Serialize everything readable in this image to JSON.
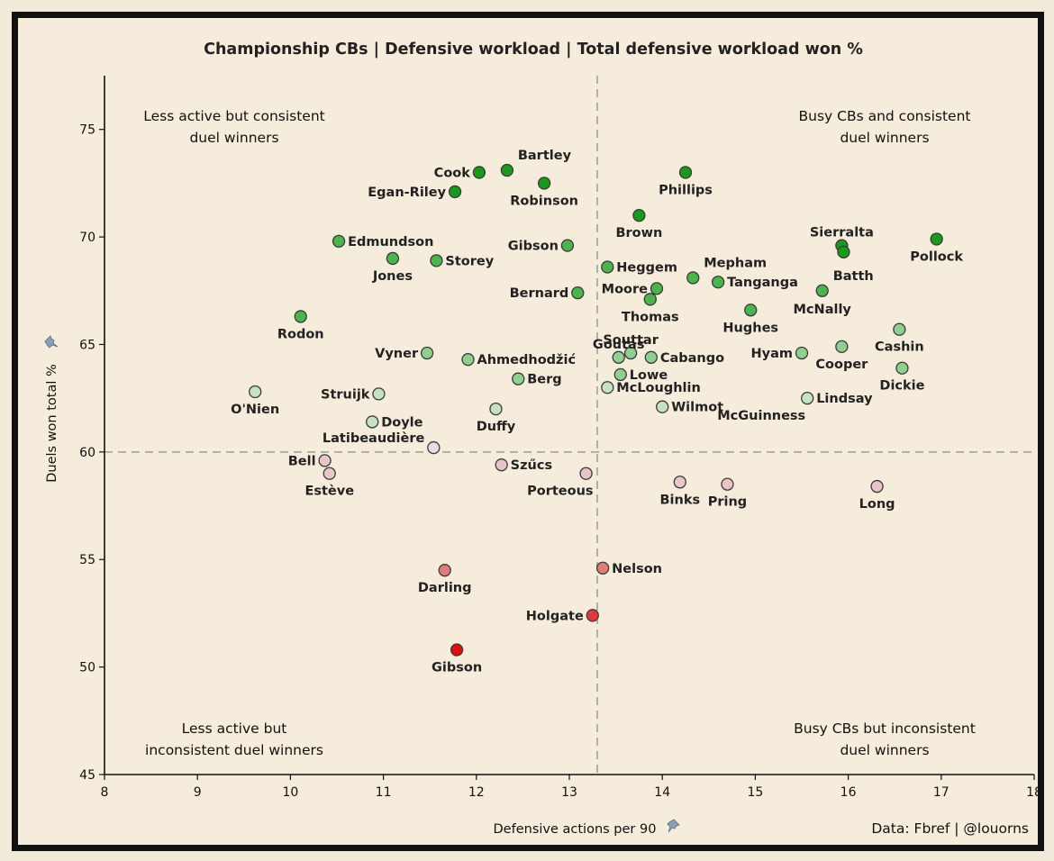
{
  "title": "Championship CBs | Defensive workload | Total defensive workload won %",
  "xlabel": "Defensive actions per 90",
  "ylabel": "Duels won total %",
  "credit": "Data: Fbref  |  @louorns",
  "quadrants": {
    "top_left": [
      "Less active but consistent",
      "duel winners"
    ],
    "top_right": [
      "Busy CBs and consistent",
      "duel winners"
    ],
    "bottom_left": [
      "Less active but",
      "inconsistent duel winners"
    ],
    "bottom_right": [
      "Busy CBs but inconsistent",
      "duel winners"
    ]
  },
  "colors": {
    "dark_green": "#1a9a1a",
    "mid_green": "#4ab54a",
    "light_green": "#8fcf8f",
    "pale_green": "#c5e3c2",
    "neutral": "#e3dee0",
    "pale_pink": "#e9c4c8",
    "light_red": "#e27c7c",
    "red": "#e23a3a",
    "dark_red": "#dd1010"
  },
  "chart_data": {
    "type": "scatter",
    "title": "Championship CBs | Defensive workload | Total defensive workload won %",
    "xlabel": "Defensive actions per 90",
    "ylabel": "Duels won total %",
    "xlim": [
      8,
      18
    ],
    "ylim": [
      45,
      77.5
    ],
    "xticks": [
      8,
      9,
      10,
      11,
      12,
      13,
      14,
      15,
      16,
      17,
      18
    ],
    "yticks": [
      45,
      50,
      55,
      60,
      65,
      70,
      75
    ],
    "reference_lines": {
      "x": 13.3,
      "y": 60
    },
    "points": [
      {
        "name": "Cook",
        "x": 12.03,
        "y": 73.0,
        "color": "dark_green",
        "pos": "left"
      },
      {
        "name": "Bartley",
        "x": 12.33,
        "y": 73.1,
        "color": "dark_green",
        "pos": "upright"
      },
      {
        "name": "Egan-Riley",
        "x": 11.77,
        "y": 72.1,
        "color": "dark_green",
        "pos": "left"
      },
      {
        "name": "Robinson",
        "x": 12.73,
        "y": 72.5,
        "color": "dark_green",
        "pos": "below"
      },
      {
        "name": "Phillips",
        "x": 14.25,
        "y": 73.0,
        "color": "dark_green",
        "pos": "below"
      },
      {
        "name": "Brown",
        "x": 13.75,
        "y": 71.0,
        "color": "dark_green",
        "pos": "below"
      },
      {
        "name": "Pollock",
        "x": 16.95,
        "y": 69.9,
        "color": "dark_green",
        "pos": "below"
      },
      {
        "name": "Sierralta",
        "x": 15.93,
        "y": 69.6,
        "color": "dark_green",
        "pos": "above"
      },
      {
        "name": "",
        "x": 15.95,
        "y": 69.3,
        "color": "dark_green",
        "pos": "none"
      },
      {
        "name": "Edmundson",
        "x": 10.52,
        "y": 69.8,
        "color": "mid_green",
        "pos": "right"
      },
      {
        "name": "Jones",
        "x": 11.1,
        "y": 69.0,
        "color": "mid_green",
        "pos": "below"
      },
      {
        "name": "Storey",
        "x": 11.57,
        "y": 68.9,
        "color": "mid_green",
        "pos": "right"
      },
      {
        "name": "Gibson",
        "x": 12.98,
        "y": 69.6,
        "color": "mid_green",
        "pos": "left"
      },
      {
        "name": "Heggem",
        "x": 13.41,
        "y": 68.6,
        "color": "mid_green",
        "pos": "right"
      },
      {
        "name": "Mepham",
        "x": 14.33,
        "y": 68.1,
        "color": "mid_green",
        "pos": "upright"
      },
      {
        "name": "Tanganga",
        "x": 14.6,
        "y": 67.9,
        "color": "mid_green",
        "pos": "right"
      },
      {
        "name": "Moore",
        "x": 13.94,
        "y": 67.6,
        "color": "mid_green",
        "pos": "left"
      },
      {
        "name": "Thomas",
        "x": 13.87,
        "y": 67.1,
        "color": "mid_green",
        "pos": "below"
      },
      {
        "name": "Batth",
        "x": 15.72,
        "y": 67.5,
        "color": "mid_green",
        "pos": "upright"
      },
      {
        "name": "McNally",
        "x": 15.72,
        "y": 67.5,
        "color": "mid_green",
        "pos": "belowlabel"
      },
      {
        "name": "Bernard",
        "x": 13.09,
        "y": 67.4,
        "color": "mid_green",
        "pos": "left"
      },
      {
        "name": "Hughes",
        "x": 14.95,
        "y": 66.6,
        "color": "mid_green",
        "pos": "below"
      },
      {
        "name": "Rodon",
        "x": 10.11,
        "y": 66.3,
        "color": "mid_green",
        "pos": "below"
      },
      {
        "name": "Cashin",
        "x": 16.55,
        "y": 65.7,
        "color": "light_green",
        "pos": "below"
      },
      {
        "name": "Goutas",
        "x": 13.53,
        "y": 64.4,
        "color": "light_green",
        "pos": "above"
      },
      {
        "name": "Souttar",
        "x": 13.66,
        "y": 64.6,
        "color": "light_green",
        "pos": "above"
      },
      {
        "name": "Cabango",
        "x": 13.88,
        "y": 64.4,
        "color": "light_green",
        "pos": "right"
      },
      {
        "name": "Hyam",
        "x": 15.5,
        "y": 64.6,
        "color": "light_green",
        "pos": "left"
      },
      {
        "name": "Cooper",
        "x": 15.93,
        "y": 64.9,
        "color": "light_green",
        "pos": "below"
      },
      {
        "name": "Vyner",
        "x": 11.47,
        "y": 64.6,
        "color": "light_green",
        "pos": "left"
      },
      {
        "name": "Ahmedhodžić",
        "x": 11.91,
        "y": 64.3,
        "color": "light_green",
        "pos": "right"
      },
      {
        "name": "Dickie",
        "x": 16.58,
        "y": 63.9,
        "color": "light_green",
        "pos": "below"
      },
      {
        "name": "Lowe",
        "x": 13.55,
        "y": 63.6,
        "color": "light_green",
        "pos": "right"
      },
      {
        "name": "Berg",
        "x": 12.45,
        "y": 63.4,
        "color": "light_green",
        "pos": "right"
      },
      {
        "name": "McLoughlin",
        "x": 13.41,
        "y": 63.0,
        "color": "pale_green",
        "pos": "right"
      },
      {
        "name": "O'Nien",
        "x": 9.62,
        "y": 62.8,
        "color": "pale_green",
        "pos": "below"
      },
      {
        "name": "Struijk",
        "x": 10.95,
        "y": 62.7,
        "color": "pale_green",
        "pos": "left"
      },
      {
        "name": "Lindsay",
        "x": 15.56,
        "y": 62.5,
        "color": "pale_green",
        "pos": "right"
      },
      {
        "name": "McGuinness",
        "x": 15.56,
        "y": 62.5,
        "color": "pale_green",
        "pos": "belowleft"
      },
      {
        "name": "Wilmot",
        "x": 14.0,
        "y": 62.1,
        "color": "pale_green",
        "pos": "right"
      },
      {
        "name": "Duffy",
        "x": 12.21,
        "y": 62.0,
        "color": "pale_green",
        "pos": "below"
      },
      {
        "name": "Doyle",
        "x": 10.88,
        "y": 61.4,
        "color": "pale_green",
        "pos": "right"
      },
      {
        "name": "Latibeaudière",
        "x": 11.54,
        "y": 60.2,
        "color": "neutral",
        "pos": "leftup"
      },
      {
        "name": "Bell",
        "x": 10.37,
        "y": 59.6,
        "color": "pale_pink",
        "pos": "left"
      },
      {
        "name": "Estève",
        "x": 10.42,
        "y": 59.0,
        "color": "pale_pink",
        "pos": "below"
      },
      {
        "name": "Szűcs",
        "x": 12.27,
        "y": 59.4,
        "color": "pale_pink",
        "pos": "right"
      },
      {
        "name": "Porteous",
        "x": 13.18,
        "y": 59.0,
        "color": "pale_pink",
        "pos": "belowleft"
      },
      {
        "name": "Binks",
        "x": 14.19,
        "y": 58.6,
        "color": "pale_pink",
        "pos": "below"
      },
      {
        "name": "Pring",
        "x": 14.7,
        "y": 58.5,
        "color": "pale_pink",
        "pos": "below"
      },
      {
        "name": "Long",
        "x": 16.31,
        "y": 58.4,
        "color": "pale_pink",
        "pos": "below"
      },
      {
        "name": "Nelson",
        "x": 13.36,
        "y": 54.6,
        "color": "light_red",
        "pos": "right"
      },
      {
        "name": "Darling",
        "x": 11.66,
        "y": 54.5,
        "color": "light_red",
        "pos": "below"
      },
      {
        "name": "Holgate",
        "x": 13.25,
        "y": 52.4,
        "color": "red",
        "pos": "left"
      },
      {
        "name": "Gibson",
        "x": 11.79,
        "y": 50.8,
        "color": "dark_red",
        "pos": "below"
      }
    ]
  }
}
